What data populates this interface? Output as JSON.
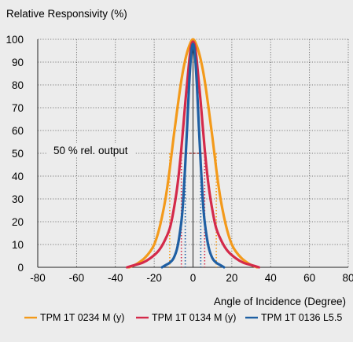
{
  "chart_data": {
    "type": "line",
    "title": "",
    "ylabel": "Relative Responsivity (%)",
    "xlabel": "Angle of Incidence (Degree)",
    "xlim": [
      -80,
      80
    ],
    "ylim": [
      0,
      100
    ],
    "xticks": [
      "-80",
      "-60",
      "-40",
      "-20",
      "0",
      "20",
      "40",
      "60",
      "80"
    ],
    "yticks": [
      "0",
      "10",
      "20",
      "30",
      "40",
      "50",
      "60",
      "70",
      "80",
      "90",
      "100"
    ],
    "grid": true,
    "legend_position": "bottom",
    "annotation": {
      "text": "50 % rel. output",
      "y": 50,
      "line_color": "#8b1a1a",
      "x_range": [
        -6,
        6
      ]
    },
    "series": [
      {
        "name": "TPM 1T 0234 M (y)",
        "color": "#f39a1b",
        "x": [
          -33,
          -30,
          -28,
          -25,
          -22,
          -20,
          -18,
          -16,
          -14,
          -12,
          -10,
          -8,
          -6,
          -4,
          -2,
          0,
          2,
          4,
          6,
          8,
          10,
          12,
          14,
          16,
          18,
          20,
          22,
          25,
          28,
          30,
          33
        ],
        "y": [
          0,
          1,
          2,
          4,
          7,
          10,
          15,
          22,
          31,
          43,
          57,
          70,
          82,
          91,
          97,
          100,
          97,
          91,
          82,
          70,
          57,
          43,
          31,
          22,
          15,
          10,
          7,
          4,
          2,
          1,
          0
        ],
        "half_width": 12
      },
      {
        "name": "TPM 1T 0134 M (y)",
        "color": "#d42a4a",
        "x": [
          -34,
          -30,
          -26,
          -22,
          -18,
          -15,
          -12,
          -10,
          -8,
          -6,
          -4,
          -2,
          -1,
          0,
          1,
          2,
          4,
          6,
          8,
          10,
          12,
          15,
          18,
          22,
          26,
          30,
          34
        ],
        "y": [
          0,
          1,
          2,
          4,
          7,
          11,
          17,
          25,
          36,
          52,
          72,
          90,
          97,
          99,
          97,
          90,
          72,
          52,
          36,
          25,
          17,
          11,
          7,
          4,
          2,
          1,
          0
        ],
        "half_width": 6
      },
      {
        "name": "TPM 1T 0136 L5.5",
        "color": "#1f5fa3",
        "x": [
          -16,
          -14,
          -12,
          -10,
          -8,
          -6,
          -5,
          -4,
          -3,
          -2,
          -1,
          0,
          1,
          2,
          3,
          4,
          5,
          6,
          8,
          10,
          12,
          14,
          16
        ],
        "y": [
          0,
          1,
          2,
          4,
          9,
          20,
          30,
          45,
          62,
          80,
          93,
          98,
          93,
          80,
          62,
          45,
          30,
          20,
          9,
          4,
          2,
          1,
          0
        ],
        "half_width": 4
      }
    ]
  }
}
